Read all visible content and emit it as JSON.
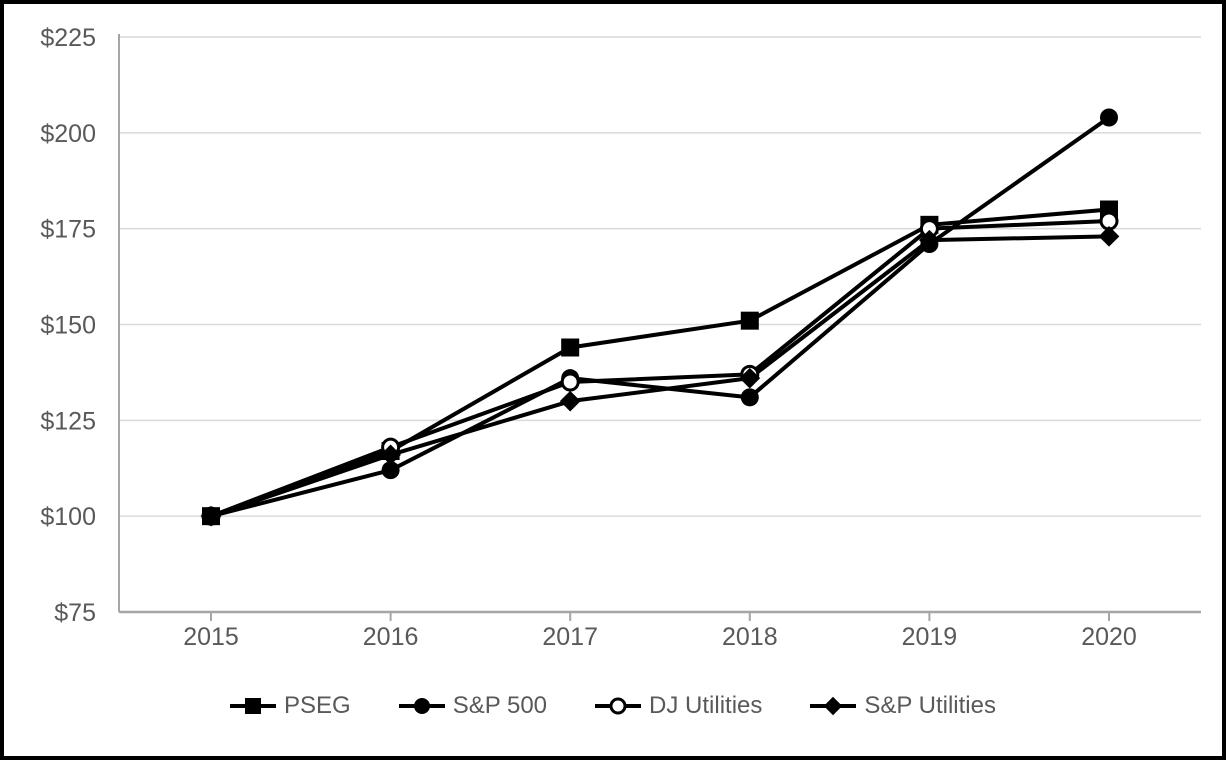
{
  "figure": {
    "background": "#ffffff",
    "border_color": "#000000"
  },
  "chart_data": {
    "type": "line",
    "title": "",
    "xlabel": "",
    "ylabel": "",
    "x": [
      2015,
      2016,
      2017,
      2018,
      2019,
      2020
    ],
    "x_tick_labels": [
      "2015",
      "2016",
      "2017",
      "2018",
      "2019",
      "2020"
    ],
    "y_ticks": [
      75,
      100,
      125,
      150,
      175,
      200,
      225
    ],
    "y_tick_labels": [
      "$75",
      "$100",
      "$125",
      "$150",
      "$175",
      "$200",
      "$225"
    ],
    "ylim": [
      75,
      225
    ],
    "grid": "horizontal",
    "legend_position": "bottom",
    "series": [
      {
        "name": "PSEG",
        "marker": "square",
        "fill": "filled",
        "values": [
          100,
          117,
          144,
          151,
          176,
          180
        ]
      },
      {
        "name": "S&P 500",
        "marker": "circle",
        "fill": "filled",
        "values": [
          100,
          112,
          136,
          131,
          171,
          204
        ]
      },
      {
        "name": "DJ Utilities",
        "marker": "circle",
        "fill": "open",
        "values": [
          100,
          118,
          135,
          137,
          175,
          177
        ]
      },
      {
        "name": "S&P Utilities",
        "marker": "diamond",
        "fill": "filled",
        "values": [
          100,
          116,
          130,
          136,
          172,
          173
        ]
      }
    ],
    "colors": {
      "series_line": "#000000",
      "marker_fill": "#000000",
      "open_marker_fill": "#ffffff",
      "axis": "#a6a6a6",
      "grid": "#d9d9d9",
      "tick_label": "#595959",
      "legend_text": "#595959"
    }
  }
}
